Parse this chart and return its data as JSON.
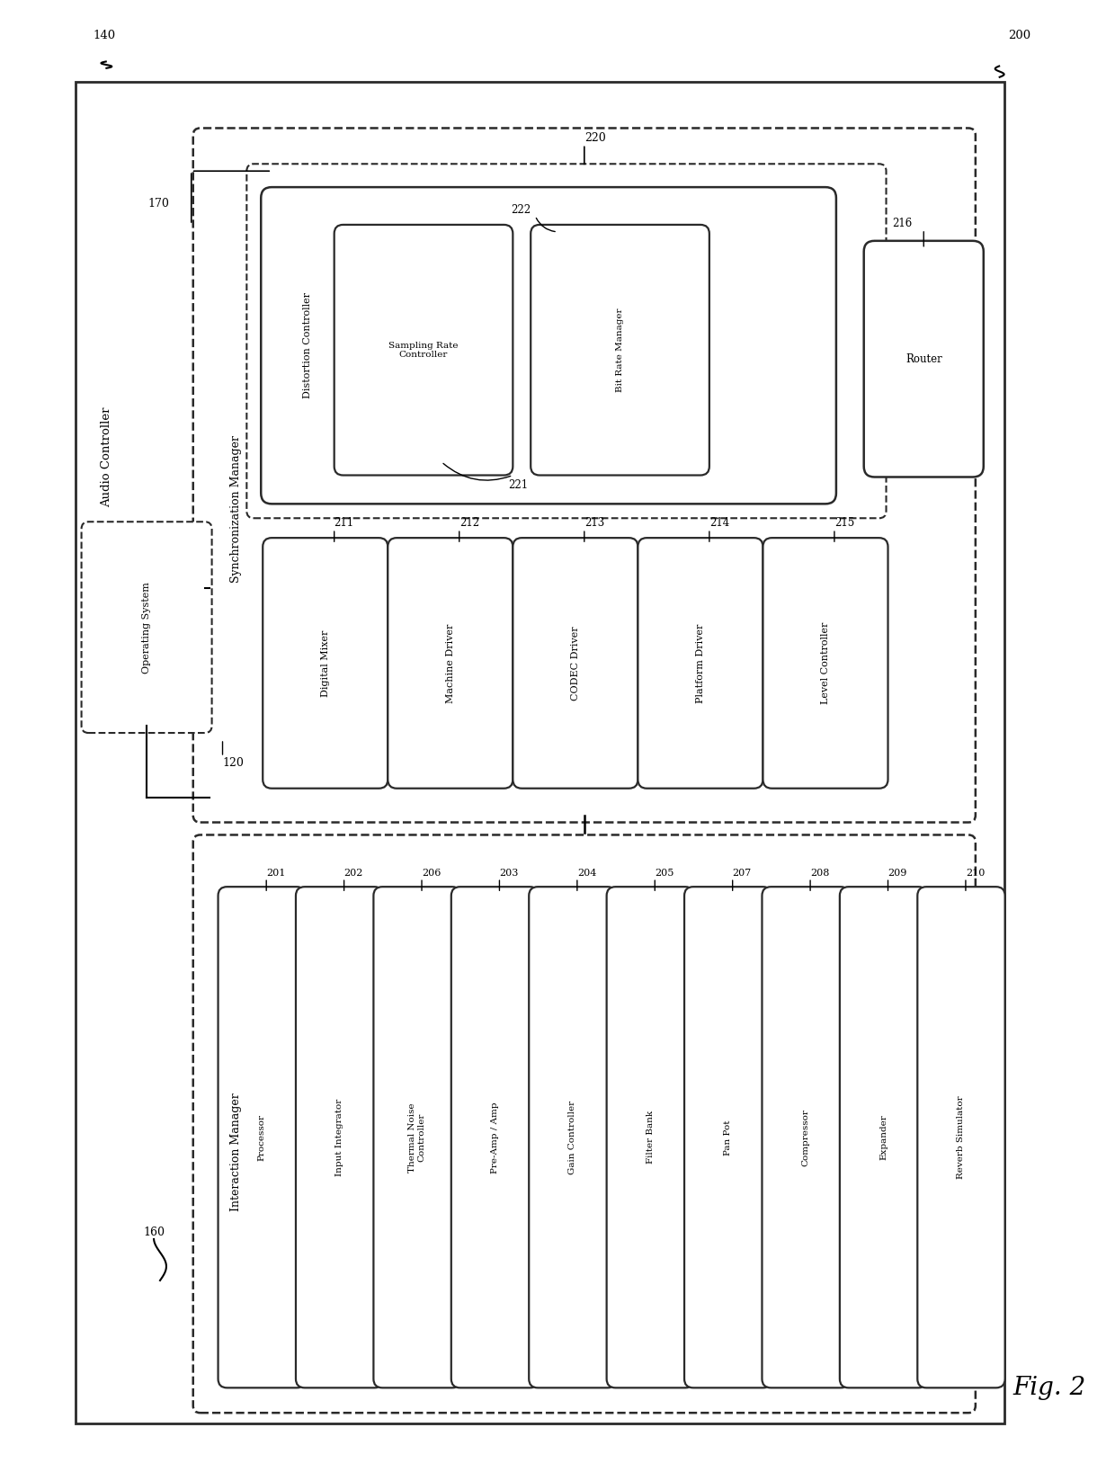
{
  "bg_color": "#ffffff",
  "fig_label": "Fig. 2",
  "fig_label_num": "200",
  "outer_label": "140",
  "audio_controller_label": "Audio Controller",
  "sync_manager_label": "Synchronization Manager",
  "sync_manager_num": "170",
  "os_label": "Operating System",
  "os_num": "120",
  "interaction_manager_label": "Interaction Manager",
  "interaction_manager_num": "160",
  "boxes_row2": [
    {
      "label": "Digital Mixer",
      "num": "211"
    },
    {
      "label": "Machine Driver",
      "num": "212"
    },
    {
      "label": "CODEC Driver",
      "num": "213"
    },
    {
      "label": "Platform Driver",
      "num": "214"
    },
    {
      "label": "Level Controller",
      "num": "215"
    }
  ],
  "boxes_top_group_label": "220",
  "dist_controller_label": "Distortion Controller",
  "sampling_rate_label": "Sampling Rate\nController",
  "sampling_rate_num": "221",
  "bit_rate_label": "Bit Rate Manager",
  "bit_rate_num": "222",
  "router_label": "Router",
  "router_num": "216",
  "boxes_bottom": [
    {
      "label": "Processor",
      "num": "201"
    },
    {
      "label": "Input Integrator",
      "num": "202"
    },
    {
      "label": "Thermal Noise\nController",
      "num": "206"
    },
    {
      "label": "Pre-Amp / Amp",
      "num": "203"
    },
    {
      "label": "Gain Controller",
      "num": "204"
    },
    {
      "label": "Filter Bank",
      "num": "205"
    },
    {
      "label": "Pan Pot",
      "num": "207"
    },
    {
      "label": "Compressor",
      "num": "208"
    },
    {
      "label": "Expander",
      "num": "209"
    },
    {
      "label": "Reverb Simulator",
      "num": "210"
    }
  ]
}
